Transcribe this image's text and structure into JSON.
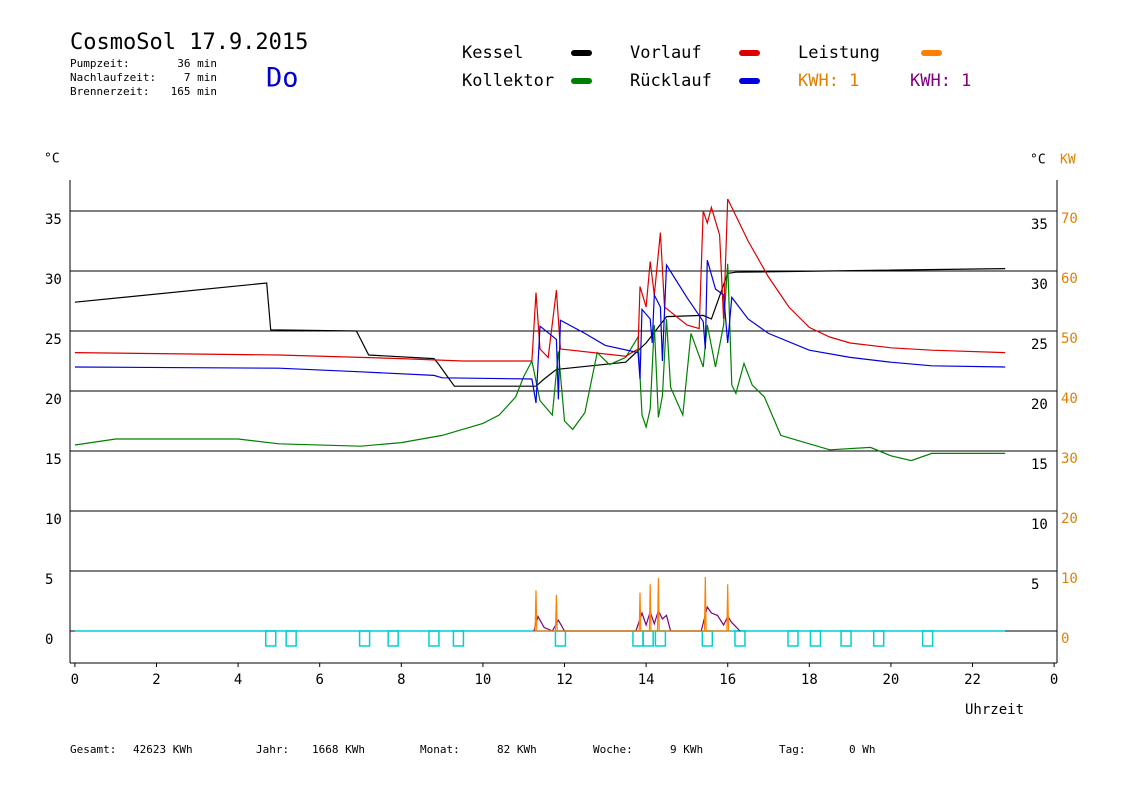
{
  "chart_data": {
    "type": "line",
    "title": "CosmoSol 17.9.2015",
    "stats": [
      {
        "label": "Pumpzeit:",
        "value": "36 min"
      },
      {
        "label": "Nachlaufzeit:",
        "value": "7 min"
      },
      {
        "label": "Brennerzeit:",
        "value": "165 min"
      }
    ],
    "weekday": "Do",
    "weekday_color": "#0000cc",
    "y_label": "°C",
    "y_right_label": "°C",
    "y2_label": "KW",
    "x_label": "Uhrzeit",
    "xlim": [
      -0.12,
      24.07
    ],
    "xticks": [
      0,
      2,
      4,
      6,
      8,
      10,
      12,
      14,
      16,
      18,
      20,
      22,
      {
        "value": 24,
        "label": "0"
      }
    ],
    "ylim": [
      -2.67,
      37.58
    ],
    "yticks": [
      0,
      5,
      10,
      15,
      20,
      25,
      30,
      35
    ],
    "yticks_right": [
      5,
      10,
      15,
      20,
      25,
      30,
      35
    ],
    "y2lim": [
      -5.33,
      75.17
    ],
    "y2ticks": [
      0,
      10,
      20,
      30,
      40,
      50,
      60,
      70
    ],
    "y2_color": "#e08000",
    "grid": true,
    "series": [
      {
        "name": "Kessel",
        "color": "#000000",
        "x": [
          0,
          4.7,
          4.8,
          6.9,
          7.2,
          8.8,
          8.9,
          9.3,
          11.3,
          11.5,
          11.8,
          13.5,
          14.0,
          14.5,
          15.4,
          15.6,
          16.0,
          16.2,
          22.8
        ],
        "values": [
          27.4,
          29.0,
          25.1,
          25.0,
          23.0,
          22.7,
          22.3,
          20.4,
          20.4,
          21.0,
          21.8,
          22.4,
          24.0,
          26.2,
          26.3,
          26.0,
          29.8,
          29.9,
          30.2
        ]
      },
      {
        "name": "Kollektor",
        "color": "#008000",
        "x": [
          0,
          1,
          3,
          4,
          5,
          7,
          8,
          9,
          10,
          10.4,
          10.8,
          11,
          11.2,
          11.4,
          11.7,
          11.85,
          12.0,
          12.2,
          12.5,
          12.8,
          13.1,
          13.5,
          13.8,
          13.9,
          14.0,
          14.1,
          14.2,
          14.3,
          14.4,
          14.5,
          14.6,
          14.9,
          15.1,
          15.4,
          15.5,
          15.7,
          15.9,
          16.0,
          16.1,
          16.2,
          16.4,
          16.6,
          16.9,
          17.3,
          17.8,
          18.5,
          19.5,
          20,
          20.5,
          21,
          22.8
        ],
        "values": [
          15.5,
          16.0,
          16.0,
          16.0,
          15.6,
          15.4,
          15.7,
          16.3,
          17.3,
          18.0,
          19.5,
          21.2,
          22.5,
          19.2,
          18.0,
          23.3,
          17.5,
          16.8,
          18.2,
          23.2,
          22.2,
          22.8,
          24.5,
          18.0,
          17.0,
          18.5,
          25.5,
          17.8,
          19.6,
          26.0,
          20.3,
          18.0,
          24.8,
          22.0,
          25.5,
          22.0,
          25.5,
          30.6,
          20.5,
          19.8,
          22.3,
          20.5,
          19.5,
          16.3,
          15.8,
          15.1,
          15.3,
          14.6,
          14.2,
          14.8,
          14.8
        ]
      },
      {
        "name": "Vorlauf",
        "color": "#dd0000",
        "x": [
          0,
          5,
          8,
          9.5,
          11.2,
          11.3,
          11.4,
          11.6,
          11.8,
          11.9,
          13.5,
          13.8,
          13.85,
          14.0,
          14.1,
          14.2,
          14.35,
          14.45,
          15.0,
          15.3,
          15.4,
          15.5,
          15.6,
          15.8,
          15.9,
          16.0,
          16.5,
          17,
          17.5,
          18,
          18.5,
          19,
          20,
          21,
          22.8
        ],
        "values": [
          23.2,
          23.0,
          22.7,
          22.5,
          22.5,
          28.2,
          23.5,
          22.8,
          28.4,
          23.5,
          22.9,
          23.5,
          28.7,
          27.0,
          30.8,
          28.0,
          33.2,
          27.0,
          25.5,
          25.2,
          35.0,
          34.0,
          35.3,
          33.0,
          26.0,
          36.0,
          32.5,
          29.5,
          27.0,
          25.3,
          24.5,
          24.0,
          23.6,
          23.4,
          23.2
        ]
      },
      {
        "name": "Rücklauf",
        "color": "#0000dd",
        "x": [
          0,
          5,
          7,
          8.8,
          9,
          11.2,
          11.3,
          11.4,
          11.8,
          11.85,
          11.9,
          12.5,
          13,
          13.8,
          13.85,
          13.9,
          14.1,
          14.15,
          14.2,
          14.35,
          14.4,
          14.5,
          15.0,
          15.4,
          15.45,
          15.5,
          15.7,
          15.9,
          16.0,
          16.1,
          16.5,
          17,
          18,
          19,
          20,
          21,
          22.8
        ],
        "values": [
          22.0,
          21.9,
          21.6,
          21.3,
          21.1,
          21.0,
          19.0,
          25.4,
          24.3,
          19.3,
          25.9,
          24.8,
          23.8,
          23.2,
          21.0,
          26.8,
          26.0,
          24.0,
          28.0,
          27.0,
          22.5,
          30.5,
          27.8,
          25.8,
          23.5,
          30.9,
          28.5,
          28.0,
          24.0,
          27.8,
          26.0,
          24.8,
          23.4,
          22.8,
          22.4,
          22.1,
          22.0
        ]
      },
      {
        "name": "Leistung",
        "color": "#ff8000",
        "axis": "y2",
        "x": [
          11.28,
          11.3,
          11.32,
          11.78,
          11.8,
          11.82,
          13.83,
          13.85,
          13.87,
          14.08,
          14.1,
          14.12,
          14.28,
          14.3,
          14.32,
          15.43,
          15.45,
          15.47,
          15.98,
          16.0,
          16.02
        ],
        "values": [
          0,
          6.8,
          0,
          0,
          6.0,
          0,
          0,
          6.4,
          0,
          0,
          7.8,
          0,
          0,
          8.8,
          0,
          0,
          9.0,
          0,
          0,
          7.8,
          0
        ]
      }
    ],
    "kwh_series": {
      "color": "#800080",
      "x": [
        11.25,
        11.35,
        11.5,
        11.7,
        11.85,
        12.0,
        13.75,
        13.9,
        14.0,
        14.1,
        14.2,
        14.3,
        14.4,
        14.5,
        14.6,
        15.35,
        15.5,
        15.6,
        15.75,
        15.9,
        16.0,
        16.1,
        16.3
      ],
      "values": [
        0,
        2.4,
        0.6,
        0,
        1.8,
        0,
        0,
        3.0,
        1.0,
        3.2,
        1.2,
        3.4,
        2.0,
        2.6,
        0,
        0,
        4.0,
        3.0,
        2.6,
        1.0,
        2.4,
        1.4,
        0
      ]
    },
    "legend_notes": [
      {
        "text": "KWH: 1",
        "color": "#e08000"
      },
      {
        "text": "KWH: 1",
        "color": "#800080"
      }
    ],
    "pump": {
      "color": "#00d0d0",
      "start": 0,
      "end": 22.8,
      "markers": [
        4.8,
        5.3,
        7.1,
        7.8,
        8.8,
        9.4,
        11.9,
        13.8,
        14.05,
        14.35,
        15.5,
        16.3,
        17.6,
        18.15,
        18.9,
        19.7,
        20.9
      ]
    },
    "footer": [
      {
        "label": "Gesamt:",
        "value": "42623 KWh"
      },
      {
        "label": "Jahr:",
        "value": "1668 KWh"
      },
      {
        "label": "Monat:",
        "value": "82 KWh"
      },
      {
        "label": "Woche:",
        "value": "9 KWh"
      },
      {
        "label": "Tag:",
        "value": "0 Wh"
      }
    ]
  }
}
